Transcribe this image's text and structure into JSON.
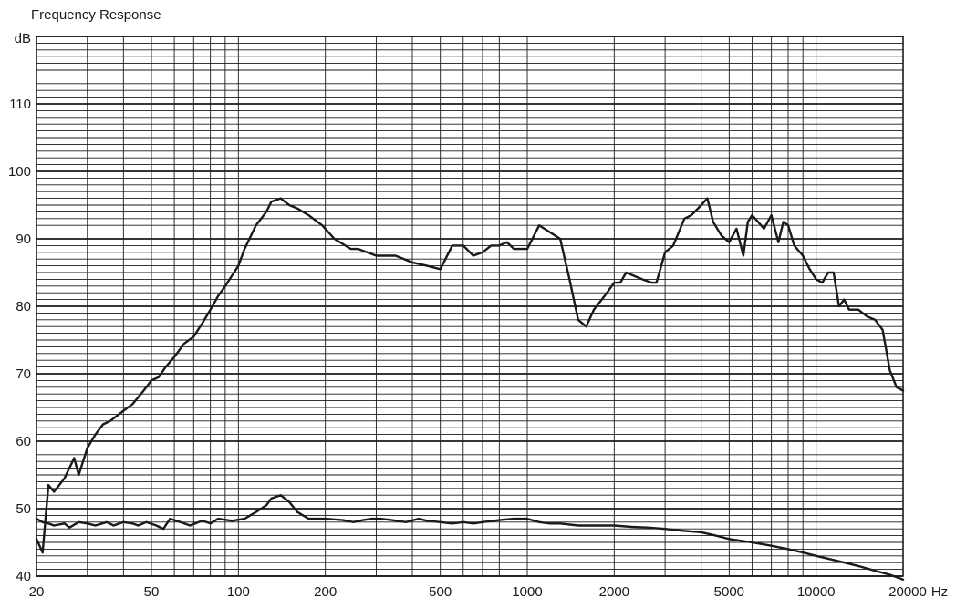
{
  "chart_data": {
    "type": "line",
    "title": "Frequency Response",
    "ylabel": "dB",
    "xunit": "Hz",
    "xscale": "log",
    "xlim": [
      20,
      20000
    ],
    "ylim": [
      40,
      120
    ],
    "grid": true,
    "x_ticks": [
      {
        "value": 20,
        "label": "20"
      },
      {
        "value": 50,
        "label": "50"
      },
      {
        "value": 100,
        "label": "100"
      },
      {
        "value": 200,
        "label": "200"
      },
      {
        "value": 500,
        "label": "500"
      },
      {
        "value": 1000,
        "label": "1000"
      },
      {
        "value": 2000,
        "label": "2000"
      },
      {
        "value": 5000,
        "label": "5000"
      },
      {
        "value": 10000,
        "label": "10000"
      },
      {
        "value": 20000,
        "label": "20000"
      }
    ],
    "y_ticks": [
      40,
      50,
      60,
      70,
      80,
      90,
      100,
      110
    ],
    "series": [
      {
        "color": "#1a1a1a",
        "x": [
          20,
          21,
          22,
          23,
          25,
          27,
          28,
          30,
          32,
          34,
          36,
          40,
          43,
          47,
          50,
          53,
          56,
          60,
          65,
          70,
          75,
          80,
          85,
          90,
          100,
          105,
          115,
          125,
          130,
          140,
          150,
          160,
          175,
          195,
          215,
          245,
          260,
          300,
          350,
          400,
          450,
          500,
          550,
          600,
          650,
          700,
          750,
          800,
          850,
          900,
          950,
          1000,
          1100,
          1300,
          1400,
          1500,
          1600,
          1700,
          1850,
          2000,
          2100,
          2200,
          2500,
          2700,
          2800,
          3000,
          3200,
          3500,
          3700,
          4000,
          4200,
          4400,
          4700,
          5000,
          5300,
          5600,
          5800,
          6000,
          6300,
          6600,
          7000,
          7400,
          7700,
          8000,
          8400,
          9000,
          9500,
          10000,
          10500,
          11000,
          11500,
          12000,
          12500,
          13000,
          14000,
          15000,
          16000,
          17000,
          18000,
          19000,
          20000
        ],
        "y": [
          45.5,
          43.5,
          53.5,
          52.5,
          54.5,
          57.5,
          55.0,
          59.0,
          61.0,
          62.5,
          63.0,
          64.5,
          65.5,
          67.5,
          69.0,
          69.5,
          71.0,
          72.5,
          74.5,
          75.5,
          77.5,
          79.5,
          81.5,
          83.0,
          86.0,
          88.5,
          92.0,
          94.0,
          95.5,
          96.0,
          95.0,
          94.5,
          93.5,
          92.0,
          90.0,
          88.5,
          88.5,
          87.5,
          87.5,
          86.5,
          86.0,
          85.5,
          89.0,
          89.0,
          87.5,
          88.0,
          89.0,
          89.0,
          89.5,
          88.5,
          88.5,
          88.5,
          92.0,
          90.0,
          84.0,
          78.0,
          77.0,
          79.5,
          81.5,
          83.5,
          83.5,
          85.0,
          84.0,
          83.5,
          83.5,
          88.0,
          89.0,
          93.0,
          93.5,
          95.0,
          96.0,
          92.5,
          90.5,
          89.5,
          91.5,
          87.5,
          92.5,
          93.5,
          92.5,
          91.5,
          93.5,
          89.5,
          92.5,
          92.0,
          89.0,
          87.5,
          85.5,
          84.0,
          83.5,
          85.0,
          85.0,
          80.0,
          81.0,
          79.5,
          79.5,
          78.5,
          78.0,
          76.5,
          70.5,
          68.0,
          67.5
        ]
      },
      {
        "color": "#1a1a1a",
        "x": [
          20,
          21,
          22,
          23,
          25,
          26,
          28,
          30,
          32,
          35,
          37,
          40,
          43,
          45,
          48,
          52,
          55,
          58,
          63,
          68,
          75,
          80,
          85,
          95,
          105,
          115,
          125,
          130,
          140,
          150,
          160,
          175,
          200,
          230,
          250,
          270,
          290,
          310,
          340,
          380,
          420,
          450,
          500,
          550,
          600,
          650,
          700,
          800,
          900,
          1000,
          1100,
          1200,
          1300,
          1500,
          1700,
          2000,
          2300,
          2600,
          3000,
          3500,
          4000,
          4500,
          5000,
          6000,
          7000,
          8000,
          9000,
          10000,
          12000,
          14000,
          16000,
          18000,
          20000
        ],
        "y": [
          48.5,
          48.0,
          47.8,
          47.5,
          47.8,
          47.2,
          48.0,
          47.8,
          47.5,
          48.0,
          47.5,
          48.0,
          47.8,
          47.5,
          48.0,
          47.5,
          47.0,
          48.5,
          48.0,
          47.5,
          48.2,
          47.8,
          48.5,
          48.2,
          48.5,
          49.5,
          50.5,
          51.5,
          52.0,
          51.0,
          49.5,
          48.5,
          48.5,
          48.3,
          48.0,
          48.3,
          48.5,
          48.5,
          48.3,
          48.0,
          48.5,
          48.2,
          48.0,
          47.8,
          48.0,
          47.8,
          48.0,
          48.3,
          48.5,
          48.5,
          48.0,
          47.8,
          47.8,
          47.5,
          47.5,
          47.5,
          47.3,
          47.2,
          47.0,
          46.7,
          46.5,
          46.0,
          45.5,
          45.0,
          44.5,
          44.0,
          43.5,
          43.0,
          42.2,
          41.5,
          40.8,
          40.2,
          39.5
        ]
      }
    ]
  }
}
